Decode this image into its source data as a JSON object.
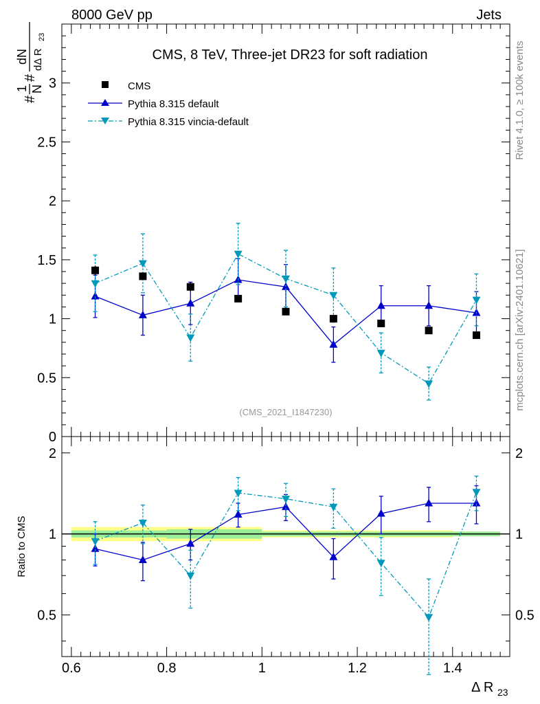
{
  "header": {
    "left": "8000 GeV pp",
    "right": "Jets"
  },
  "side_text": {
    "rivet": "Rivet 4.1.0, ≥ 100k events",
    "mcplots": "mcplots.cern.ch [arXiv:2401.10621]"
  },
  "chart_data": [
    {
      "type": "scatter",
      "panel": "main",
      "title": "CMS, 8 TeV, Three-jet DR23 for soft radiation",
      "analysis_label": "(CMS_2021_I1847230)",
      "ylabel": "#1/N #dN/dΔ R23",
      "xlim": [
        0.58,
        1.52
      ],
      "ylim": [
        0,
        3.5
      ],
      "yticks": [
        0,
        0.5,
        1,
        1.5,
        2,
        2.5,
        3
      ],
      "ytick_labels": [
        "0",
        "0.5",
        "1",
        "1.5",
        "2",
        "2.5",
        "3"
      ],
      "legend": {
        "position": "top-left",
        "entries": [
          "CMS",
          "Pythia 8.315 default",
          "Pythia 8.315 vincia-default"
        ]
      },
      "series": [
        {
          "name": "CMS",
          "color": "#000000",
          "marker": "square",
          "x": [
            0.65,
            0.75,
            0.85,
            0.95,
            1.05,
            1.15,
            1.25,
            1.35,
            1.45
          ],
          "y": [
            1.41,
            1.36,
            1.27,
            1.17,
            1.06,
            1.0,
            0.96,
            0.9,
            0.86
          ],
          "yerr": [
            0.04,
            0.03,
            0.04,
            0.03,
            0.02,
            0.03,
            0.02,
            0.02,
            0.02
          ]
        },
        {
          "name": "Pythia 8.315 default",
          "color": "#0000cc",
          "marker": "triangle-up",
          "line": "solid",
          "x": [
            0.65,
            0.75,
            0.85,
            0.95,
            1.05,
            1.15,
            1.25,
            1.35,
            1.45
          ],
          "y": [
            1.19,
            1.03,
            1.13,
            1.33,
            1.27,
            0.78,
            1.11,
            1.11,
            1.05
          ],
          "yerr": [
            0.18,
            0.17,
            0.18,
            0.18,
            0.19,
            0.15,
            0.17,
            0.17,
            0.18
          ]
        },
        {
          "name": "Pythia 8.315 vincia-default",
          "color": "#0099bb",
          "marker": "triangle-down",
          "line": "dash-dot",
          "x": [
            0.65,
            0.75,
            0.85,
            0.95,
            1.05,
            1.15,
            1.25,
            1.35,
            1.45
          ],
          "y": [
            1.3,
            1.47,
            0.84,
            1.55,
            1.34,
            1.2,
            0.71,
            0.45,
            1.16
          ],
          "yerr": [
            0.24,
            0.25,
            0.2,
            0.26,
            0.24,
            0.23,
            0.17,
            0.14,
            0.22
          ]
        }
      ]
    },
    {
      "type": "scatter",
      "panel": "ratio",
      "ylabel": "Ratio to CMS",
      "xlabel": "Δ R23",
      "xlim": [
        0.58,
        1.52
      ],
      "ylim": [
        0.35,
        2.3
      ],
      "xticks": [
        0.6,
        0.8,
        1.0,
        1.2,
        1.4
      ],
      "xtick_labels": [
        "0.6",
        "0.8",
        "1",
        "1.2",
        "1.4"
      ],
      "yticks": [
        0.5,
        1,
        2
      ],
      "ytick_labels": [
        "0.5",
        "1",
        "2"
      ],
      "reference_line": 1.0,
      "uncertainty_bands": {
        "x_edges": [
          0.6,
          0.7,
          0.8,
          0.9,
          1.0,
          1.1,
          1.2,
          1.3,
          1.4,
          1.5
        ],
        "stat": [
          0.03,
          0.03,
          0.04,
          0.04,
          0.02,
          0.02,
          0.02,
          0.02,
          0.02
        ],
        "total": [
          0.06,
          0.06,
          0.06,
          0.06,
          0.03,
          0.03,
          0.03,
          0.03,
          0.02
        ],
        "stat_color": "#99ee99",
        "total_color": "#ffff88"
      },
      "series": [
        {
          "name": "Pythia 8.315 default",
          "color": "#0000cc",
          "marker": "triangle-up",
          "line": "solid",
          "x": [
            0.65,
            0.75,
            0.85,
            0.95,
            1.05,
            1.15,
            1.25,
            1.35,
            1.45
          ],
          "y": [
            0.88,
            0.8,
            0.92,
            1.18,
            1.26,
            0.82,
            1.19,
            1.3,
            1.3
          ],
          "yerr": [
            0.12,
            0.13,
            0.12,
            0.12,
            0.14,
            0.14,
            0.19,
            0.19,
            0.21
          ]
        },
        {
          "name": "Pythia 8.315 vincia-default",
          "color": "#0099bb",
          "marker": "triangle-down",
          "line": "dash-dot",
          "x": [
            0.65,
            0.75,
            0.85,
            0.95,
            1.05,
            1.15,
            1.25,
            1.35,
            1.45
          ],
          "y": [
            0.94,
            1.1,
            0.7,
            1.42,
            1.35,
            1.26,
            0.78,
            0.49,
            1.43
          ],
          "yerr": [
            0.17,
            0.18,
            0.17,
            0.2,
            0.19,
            0.21,
            0.19,
            0.19,
            0.21
          ]
        }
      ]
    }
  ]
}
